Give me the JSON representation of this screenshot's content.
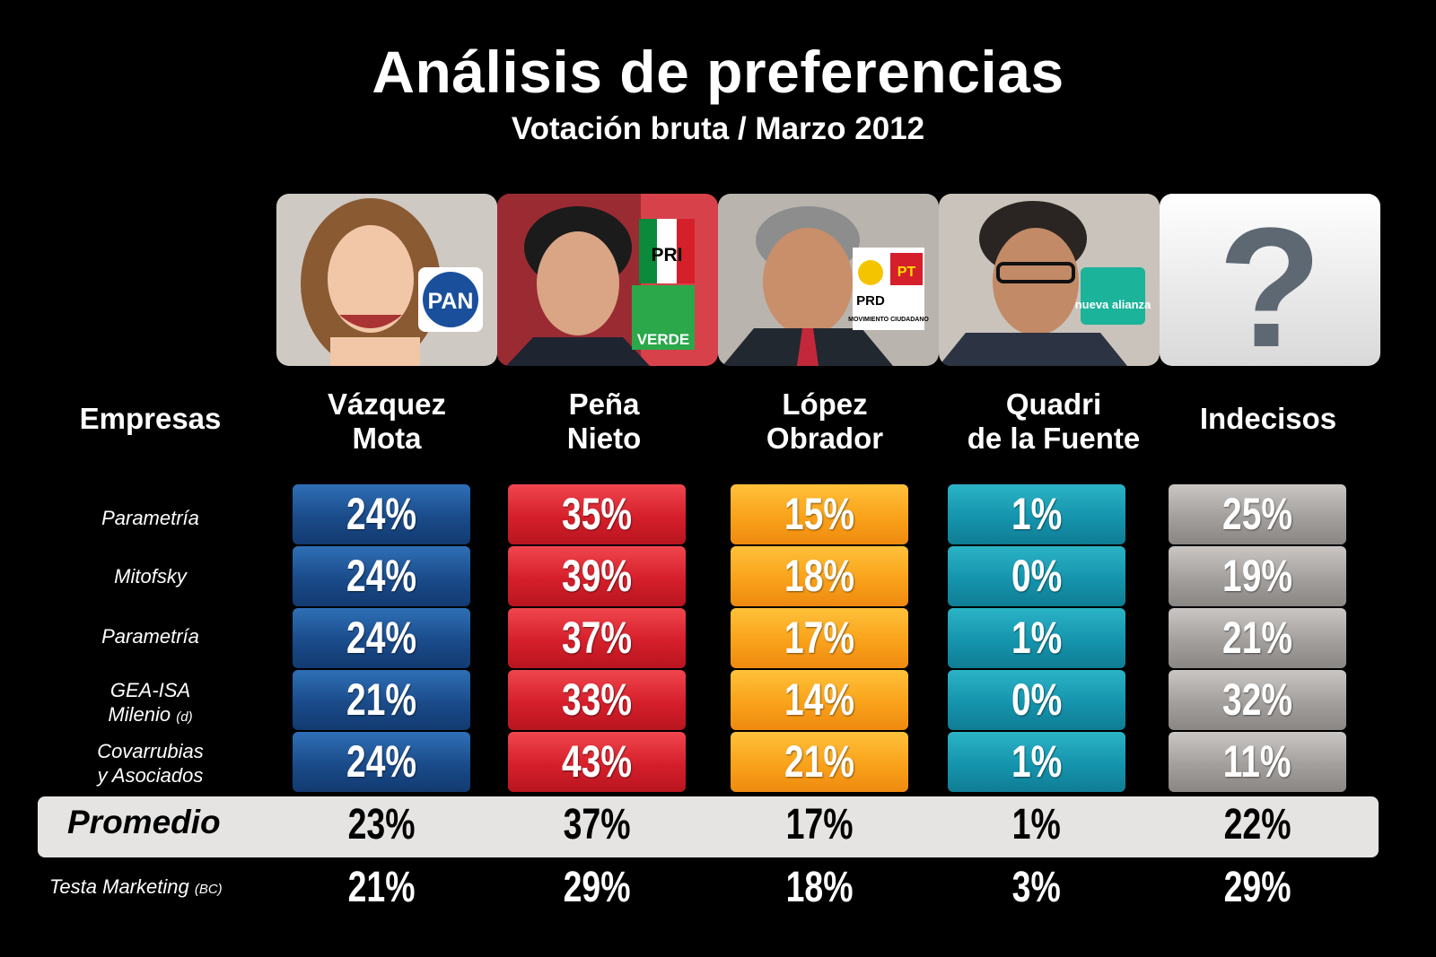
{
  "title": "Análisis de preferencias",
  "subtitle": "Votación bruta / Marzo 2012",
  "companies_header": "Empresas",
  "candidates": [
    {
      "line1": "Vázquez",
      "line2": "Mota",
      "party_logos": [
        "PAN"
      ],
      "color": "#1a4b8a"
    },
    {
      "line1": "Peña",
      "line2": "Nieto",
      "party_logos": [
        "PRI",
        "VERDE"
      ],
      "color": "#d51f2b"
    },
    {
      "line1": "López",
      "line2": "Obrador",
      "party_logos": [
        "PRD",
        "PT",
        "MOVIMIENTO CIUDADANO"
      ],
      "color": "#f9a21a"
    },
    {
      "line1": "Quadri",
      "line2": "de la Fuente",
      "party_logos": [
        "nueva alianza"
      ],
      "color": "#1594ad"
    },
    {
      "line1": "Indecisos",
      "line2": "",
      "party_logos": [
        "?"
      ],
      "color": "#a39f9d"
    }
  ],
  "companies": [
    {
      "line1": "Parametría",
      "line2": "",
      "note": ""
    },
    {
      "line1": "Mitofsky",
      "line2": "",
      "note": ""
    },
    {
      "line1": "Parametría",
      "line2": "",
      "note": ""
    },
    {
      "line1": "GEA-ISA",
      "line2": "Milenio",
      "note": "(d)"
    },
    {
      "line1": "Covarrubias",
      "line2": "y Asociados",
      "note": ""
    }
  ],
  "average_label": "Promedio",
  "testa_label": "Testa  Marketing",
  "testa_note": "(BC)",
  "chart_data": {
    "type": "table",
    "title": "Análisis de preferencias",
    "subtitle": "Votación bruta / Marzo 2012",
    "columns": [
      "Vázquez Mota",
      "Peña Nieto",
      "López Obrador",
      "Quadri de la Fuente",
      "Indecisos"
    ],
    "rows": [
      {
        "company": "Parametría",
        "values": [
          "24%",
          "35%",
          "15%",
          "1%",
          "25%"
        ]
      },
      {
        "company": "Mitofsky",
        "values": [
          "24%",
          "39%",
          "18%",
          "0%",
          "19%"
        ]
      },
      {
        "company": "Parametría",
        "values": [
          "24%",
          "37%",
          "17%",
          "1%",
          "21%"
        ]
      },
      {
        "company": "GEA-ISA Milenio (d)",
        "values": [
          "21%",
          "33%",
          "14%",
          "0%",
          "32%"
        ]
      },
      {
        "company": "Covarrubias y Asociados",
        "values": [
          "24%",
          "43%",
          "21%",
          "1%",
          "11%"
        ]
      }
    ],
    "average": {
      "label": "Promedio",
      "values": [
        "23%",
        "37%",
        "17%",
        "1%",
        "22%"
      ]
    },
    "extra_row": {
      "label": "Testa  Marketing (BC)",
      "values": [
        "21%",
        "29%",
        "18%",
        "3%",
        "29%"
      ]
    }
  }
}
